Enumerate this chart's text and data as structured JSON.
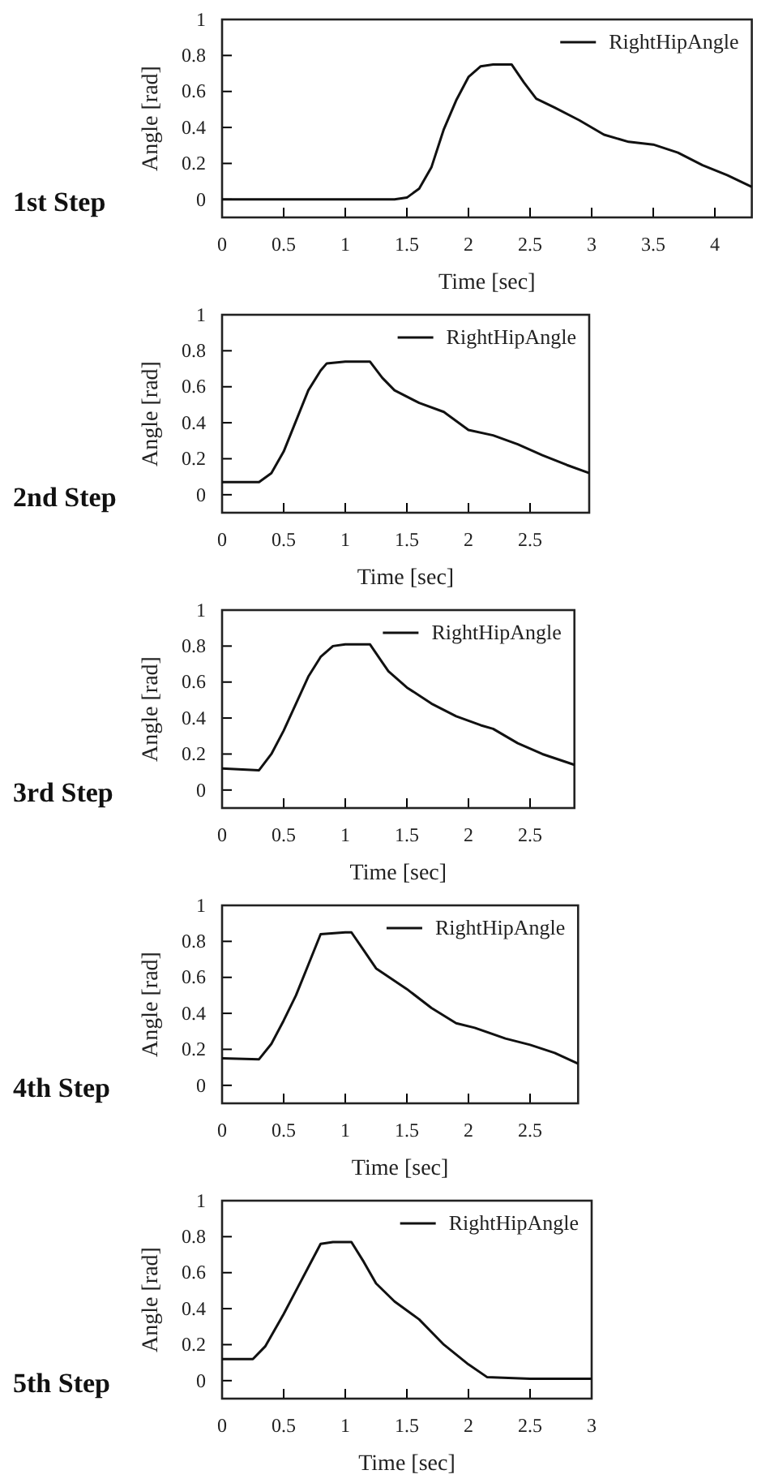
{
  "chart_data": [
    {
      "type": "line",
      "title": "1st Step",
      "xlabel": "Time [sec]",
      "ylabel": "Angle [rad]",
      "xlim": [
        0,
        4.3
      ],
      "ylim": [
        -0.1,
        1
      ],
      "xticks": [
        0,
        0.5,
        1,
        1.5,
        2,
        2.5,
        3,
        3.5,
        4
      ],
      "yticks": [
        0,
        0.2,
        0.4,
        0.6,
        0.8,
        1
      ],
      "legend": "top right",
      "grid": false,
      "series": [
        {
          "name": "RightHipAngle",
          "color": "#111111",
          "x": [
            0,
            1.4,
            1.5,
            1.6,
            1.7,
            1.8,
            1.9,
            2.0,
            2.1,
            2.2,
            2.35,
            2.45,
            2.55,
            2.7,
            2.9,
            3.1,
            3.3,
            3.5,
            3.7,
            3.9,
            4.1,
            4.3
          ],
          "values": [
            0,
            0,
            0.01,
            0.06,
            0.18,
            0.39,
            0.55,
            0.68,
            0.74,
            0.75,
            0.75,
            0.65,
            0.56,
            0.51,
            0.44,
            0.36,
            0.32,
            0.305,
            0.26,
            0.19,
            0.135,
            0.07
          ]
        }
      ]
    },
    {
      "type": "line",
      "title": "2nd Step",
      "xlabel": "Time [sec]",
      "ylabel": "Angle [rad]",
      "xlim": [
        0,
        2.98
      ],
      "ylim": [
        -0.1,
        1
      ],
      "xticks": [
        0,
        0.5,
        1,
        1.5,
        2,
        2.5
      ],
      "yticks": [
        0,
        0.2,
        0.4,
        0.6,
        0.8,
        1
      ],
      "legend": "top right",
      "grid": false,
      "series": [
        {
          "name": "RightHipAngle",
          "color": "#111111",
          "x": [
            0,
            0.3,
            0.4,
            0.5,
            0.6,
            0.7,
            0.8,
            0.85,
            1.0,
            1.2,
            1.3,
            1.4,
            1.6,
            1.8,
            2.0,
            2.2,
            2.4,
            2.6,
            2.8,
            2.98
          ],
          "values": [
            0.07,
            0.07,
            0.12,
            0.24,
            0.41,
            0.58,
            0.69,
            0.73,
            0.74,
            0.74,
            0.65,
            0.58,
            0.51,
            0.46,
            0.36,
            0.33,
            0.28,
            0.22,
            0.165,
            0.12
          ]
        }
      ]
    },
    {
      "type": "line",
      "title": "3rd Step",
      "xlabel": "Time [sec]",
      "ylabel": "Angle [rad]",
      "xlim": [
        0,
        2.86
      ],
      "ylim": [
        -0.1,
        1
      ],
      "xticks": [
        0,
        0.5,
        1,
        1.5,
        2,
        2.5
      ],
      "yticks": [
        0,
        0.2,
        0.4,
        0.6,
        0.8,
        1
      ],
      "legend": "top right",
      "grid": false,
      "series": [
        {
          "name": "RightHipAngle",
          "color": "#111111",
          "x": [
            0,
            0.3,
            0.4,
            0.5,
            0.6,
            0.7,
            0.8,
            0.9,
            1.0,
            1.2,
            1.3,
            1.35,
            1.5,
            1.7,
            1.9,
            2.1,
            2.2,
            2.4,
            2.6,
            2.86
          ],
          "values": [
            0.12,
            0.11,
            0.2,
            0.33,
            0.48,
            0.63,
            0.74,
            0.8,
            0.81,
            0.81,
            0.71,
            0.66,
            0.57,
            0.48,
            0.41,
            0.36,
            0.34,
            0.26,
            0.2,
            0.14
          ]
        }
      ]
    },
    {
      "type": "line",
      "title": "4th Step",
      "xlabel": "Time [sec]",
      "ylabel": "Angle [rad]",
      "xlim": [
        0,
        2.89
      ],
      "ylim": [
        -0.1,
        1
      ],
      "xticks": [
        0,
        0.5,
        1,
        1.5,
        2,
        2.5
      ],
      "yticks": [
        0,
        0.2,
        0.4,
        0.6,
        0.8,
        1
      ],
      "legend": "top right",
      "grid": false,
      "series": [
        {
          "name": "RightHipAngle",
          "color": "#111111",
          "x": [
            0,
            0.3,
            0.4,
            0.5,
            0.6,
            0.7,
            0.8,
            1.0,
            1.05,
            1.15,
            1.25,
            1.5,
            1.7,
            1.9,
            2.05,
            2.3,
            2.5,
            2.7,
            2.89
          ],
          "values": [
            0.15,
            0.145,
            0.23,
            0.36,
            0.5,
            0.67,
            0.84,
            0.85,
            0.85,
            0.75,
            0.65,
            0.535,
            0.43,
            0.345,
            0.32,
            0.26,
            0.225,
            0.18,
            0.12
          ]
        }
      ]
    },
    {
      "type": "line",
      "title": "5th Step",
      "xlabel": "Time [sec]",
      "ylabel": "Angle [rad]",
      "xlim": [
        0,
        3
      ],
      "ylim": [
        -0.1,
        1
      ],
      "xticks": [
        0,
        0.5,
        1,
        1.5,
        2,
        2.5,
        3
      ],
      "yticks": [
        0,
        0.2,
        0.4,
        0.6,
        0.8,
        1
      ],
      "legend": "top right",
      "grid": false,
      "series": [
        {
          "name": "RightHipAngle",
          "color": "#111111",
          "x": [
            0,
            0.25,
            0.35,
            0.5,
            0.6,
            0.7,
            0.8,
            0.9,
            1.05,
            1.15,
            1.25,
            1.4,
            1.6,
            1.8,
            2.0,
            2.15,
            2.5,
            3.0
          ],
          "values": [
            0.12,
            0.12,
            0.19,
            0.37,
            0.5,
            0.63,
            0.76,
            0.77,
            0.77,
            0.66,
            0.54,
            0.44,
            0.34,
            0.2,
            0.09,
            0.02,
            0.01,
            0.01
          ]
        }
      ]
    }
  ]
}
